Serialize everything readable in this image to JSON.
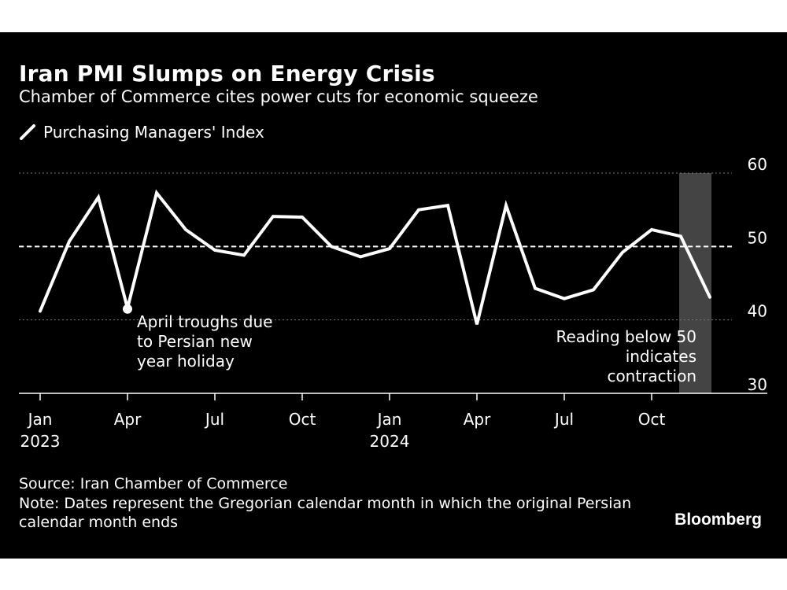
{
  "title": "Iran PMI Slumps on Energy Crisis",
  "subtitle": "Chamber of Commerce cites power cuts for economic squeeze",
  "footer": {
    "source": "Source: Iran Chamber of Commerce",
    "note": "Note: Dates represent the Gregorian calendar month in which the original Persian calendar month ends",
    "brand": "Bloomberg"
  },
  "colors": {
    "background": "#000000",
    "line": "#ffffff",
    "grid": "#777777",
    "shade": "#444444"
  },
  "chart_data": {
    "type": "line",
    "title": "Iran PMI Slumps on Energy Crisis",
    "subtitle": "Chamber of Commerce cites power cuts for economic squeeze",
    "x": [
      "2023-01",
      "2023-02",
      "2023-03",
      "2023-04",
      "2023-05",
      "2023-06",
      "2023-07",
      "2023-08",
      "2023-09",
      "2023-10",
      "2023-11",
      "2023-12",
      "2024-01",
      "2024-02",
      "2024-03",
      "2024-04",
      "2024-05",
      "2024-06",
      "2024-07",
      "2024-08",
      "2024-09",
      "2024-10",
      "2024-11",
      "2024-12"
    ],
    "series": [
      {
        "name": "Purchasing Managers' Index",
        "values": [
          41.2,
          50.7,
          56.7,
          41.6,
          57.3,
          52.3,
          49.5,
          48.8,
          54.1,
          54.0,
          50.0,
          48.6,
          49.7,
          55.0,
          55.6,
          39.4,
          55.6,
          44.3,
          42.9,
          44.1,
          49.2,
          52.3,
          51.4,
          43.1
        ]
      }
    ],
    "ylim": [
      30,
      60
    ],
    "yticks": [
      60,
      50,
      40,
      30
    ],
    "reference_line": 50,
    "xticks": [
      {
        "x": "2023-01",
        "label": "Jan",
        "year": "2023"
      },
      {
        "x": "2023-04",
        "label": "Apr",
        "year": ""
      },
      {
        "x": "2023-07",
        "label": "Jul",
        "year": ""
      },
      {
        "x": "2023-10",
        "label": "Oct",
        "year": ""
      },
      {
        "x": "2024-01",
        "label": "Jan",
        "year": "2024"
      },
      {
        "x": "2024-04",
        "label": "Apr",
        "year": ""
      },
      {
        "x": "2024-07",
        "label": "Jul",
        "year": ""
      },
      {
        "x": "2024-10",
        "label": "Oct",
        "year": ""
      }
    ],
    "shaded_range": [
      "2024-11",
      "2024-12"
    ],
    "grid": true,
    "legend_position": "top-left",
    "annotations": [
      {
        "x": "2023-04",
        "text": "April troughs due to Persian new year holiday",
        "lines": [
          "April troughs due",
          "to Persian new",
          "year holiday"
        ]
      },
      {
        "x": "2024-12",
        "text": "Reading below 50 indicates contraction",
        "lines": [
          "Reading below 50",
          "indicates",
          "contraction"
        ]
      }
    ]
  }
}
